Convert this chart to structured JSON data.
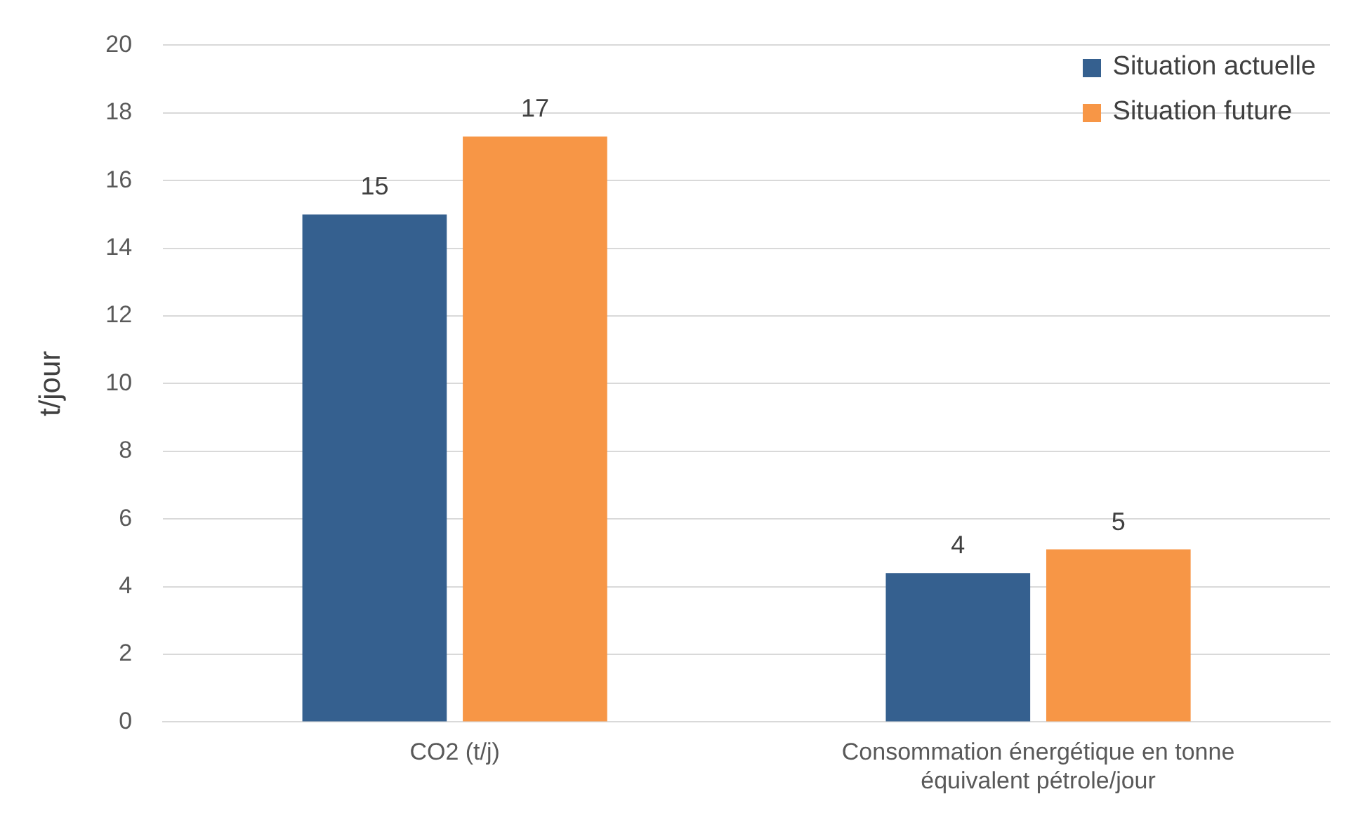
{
  "chart_data": {
    "type": "bar",
    "ylabel": "t/jour",
    "categories": [
      "CO2 (t/j)",
      "Consommation énergétique en tonne équivalent pétrole/jour"
    ],
    "series": [
      {
        "name": "Situation actuelle",
        "color": "#35608f",
        "values": [
          15,
          4.4
        ],
        "value_labels": [
          "15",
          "4"
        ]
      },
      {
        "name": "Situation future",
        "color": "#f79646",
        "values": [
          17.3,
          5.1
        ],
        "value_labels": [
          "17",
          "5"
        ]
      }
    ],
    "ylim": [
      0,
      20
    ],
    "yticks": [
      0,
      2,
      4,
      6,
      8,
      10,
      12,
      14,
      16,
      18,
      20
    ],
    "grid": "y",
    "legend": "top right"
  }
}
